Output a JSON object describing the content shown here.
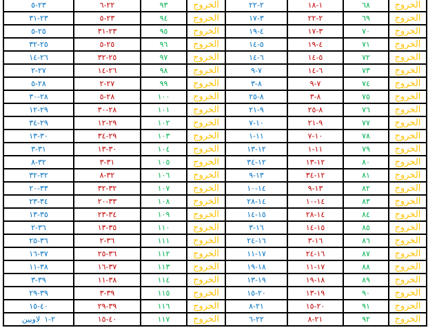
{
  "colors": {
    "blue": "#0070c0",
    "red": "#c00000",
    "green": "#00b050",
    "orange": "#ffc000"
  },
  "book": "الخروج",
  "rows": [
    {
      "left": {
        "from": "٦-٢٢",
        "to": "٥-٢٣",
        "num": "٩٣"
      },
      "right": {
        "from": "١٨-١",
        "to": "٢٢-٢",
        "num": "٦٨"
      }
    },
    {
      "left": {
        "from": "٥-٢٣",
        "to": "٣١-٢٣",
        "num": "٩٤"
      },
      "right": {
        "from": "٢٢-٢",
        "to": "١٧-٣",
        "num": "٦٩"
      }
    },
    {
      "left": {
        "from": "٣١-٢٣",
        "to": "٥-٢٥",
        "num": "٩٥"
      },
      "right": {
        "from": "١٧-٣",
        "to": "١٩-٤",
        "num": "٧٠"
      }
    },
    {
      "left": {
        "from": "٥-٢٥",
        "to": "٣٢-٢٥",
        "num": "٩٦"
      },
      "right": {
        "from": "١٩-٤",
        "to": "١٤-٥",
        "num": "٧١"
      }
    },
    {
      "left": {
        "from": "٣٢-٢٥",
        "to": "١٤-٢٦",
        "num": "٩٧"
      },
      "right": {
        "from": "١٤-٥",
        "to": "١٤-٦",
        "num": "٧٢"
      }
    },
    {
      "left": {
        "from": "١٤-٢٦",
        "to": "٢-٢٧",
        "num": "٩٨"
      },
      "right": {
        "from": "١٤-٦",
        "to": "٩-٧",
        "num": "٧٣"
      }
    },
    {
      "left": {
        "from": "٢-٢٧",
        "to": "٥-٢٨",
        "num": "٩٩"
      },
      "right": {
        "from": "٩-٧",
        "to": "٣-٨",
        "num": "٧٤"
      }
    },
    {
      "left": {
        "from": "٥-٢٨",
        "to": "٣٠-٢٨",
        "num": "١٠٠"
      },
      "right": {
        "from": "٣-٨",
        "to": "٢٥-٨",
        "num": "٧٥"
      }
    },
    {
      "left": {
        "from": "٣٠-٢٨",
        "to": "١٢-٢٩",
        "num": "١٠١"
      },
      "right": {
        "from": "٢٥-٨",
        "to": "٢١-٩",
        "num": "٧٦"
      }
    },
    {
      "left": {
        "from": "١٢-٢٩",
        "to": "٣٤-٢٩",
        "num": "١٠٢"
      },
      "right": {
        "from": "٢١-٩",
        "to": "٧-١٠",
        "num": "٧٧"
      }
    },
    {
      "left": {
        "from": "٣٤-٢٩",
        "to": "١٣-٣٠",
        "num": "١٠٣"
      },
      "right": {
        "from": "٧-١٠",
        "to": "١-١١",
        "num": "٧٨"
      }
    },
    {
      "left": {
        "from": "١٣-٣٠",
        "to": "٣-٣١",
        "num": "١٠٤"
      },
      "right": {
        "from": "١-١١",
        "to": "١٣-١٢",
        "num": "٧٩"
      }
    },
    {
      "left": {
        "from": "٣-٣١",
        "to": "٨-٣٢",
        "num": "١٠٥"
      },
      "right": {
        "from": "١٣-١٢",
        "to": "٣٤-١٢",
        "num": "٨٠"
      }
    },
    {
      "left": {
        "from": "٨-٣٢",
        "to": "٣٢-٣٢",
        "num": "١٠٦"
      },
      "right": {
        "from": "٣٤-١٢",
        "to": "٩-١٣",
        "num": "٨١"
      }
    },
    {
      "left": {
        "from": "٣٢-٣٢",
        "to": "٢٠-٣٣",
        "num": "١٠٧"
      },
      "right": {
        "from": "٩-١٣",
        "to": "١٠-١٤",
        "num": "٨٢"
      }
    },
    {
      "left": {
        "from": "٢٠-٣٣",
        "to": "٢٣-٣٤",
        "num": "١٠٨"
      },
      "right": {
        "from": "١٠-١٤",
        "to": "٢٨-١٤",
        "num": "٨٣"
      }
    },
    {
      "left": {
        "from": "٢٣-٣٤",
        "to": "١٣-٣٥",
        "num": "١٠٩"
      },
      "right": {
        "from": "٢٨-١٤",
        "to": "١٤-١٥",
        "num": "٨٤"
      }
    },
    {
      "left": {
        "from": "١٣-٣٥",
        "to": "٢-٣٦",
        "num": "١١٠"
      },
      "right": {
        "from": "١٤-١٥",
        "to": "٣-١٦",
        "num": "٨٥"
      }
    },
    {
      "left": {
        "from": "٢-٣٦",
        "to": "٢٥-٣٦",
        "num": "١١١"
      },
      "right": {
        "from": "٣-١٦",
        "to": "٢٤-١٦",
        "num": "٨٦"
      }
    },
    {
      "left": {
        "from": "٢٥-٣٦",
        "to": "١٦-٣٧",
        "num": "١١٢"
      },
      "right": {
        "from": "٢٤-١٦",
        "to": "١١-١٧",
        "num": "٨٧"
      }
    },
    {
      "left": {
        "from": "١٦-٣٧",
        "to": "١١-٣٨",
        "num": "١١٣"
      },
      "right": {
        "from": "١١-١٧",
        "to": "١٩-١٨",
        "num": "٨٨"
      }
    },
    {
      "left": {
        "from": "١١-٣٨",
        "to": "٣-٣٩",
        "num": "١١٤"
      },
      "right": {
        "from": "١٩-١٨",
        "to": "١٣-١٩",
        "num": "٨٩"
      }
    },
    {
      "left": {
        "from": "٣-٣٩",
        "to": "٢٩-٣٩",
        "num": "١١٥"
      },
      "right": {
        "from": "١٣-١٩",
        "to": "١٥-٢٠",
        "num": "٩٠"
      }
    },
    {
      "left": {
        "from": "٢٩-٣٩",
        "to": "١٥-٤٠",
        "num": "١١٦"
      },
      "right": {
        "from": "١٥-٢٠",
        "to": "٨-٢١",
        "num": "٩١"
      }
    },
    {
      "left": {
        "from": "١٥-٤٠",
        "to": "١-٢",
        "to_book": "لاويين",
        "num": "١١٧"
      },
      "right": {
        "from": "٨-٢١",
        "to": "٦-٢٢",
        "num": "٩٢"
      }
    }
  ]
}
